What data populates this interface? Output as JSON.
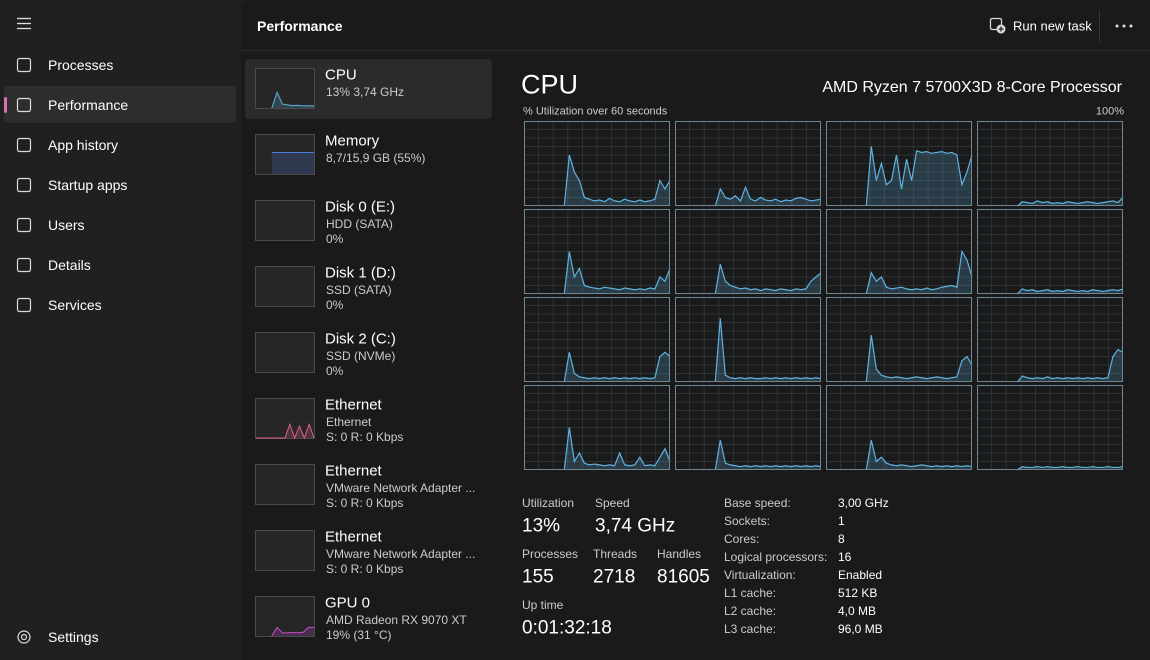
{
  "nav": {
    "items": [
      "Processes",
      "Performance",
      "App history",
      "Startup apps",
      "Users",
      "Details",
      "Services"
    ],
    "selected": 1,
    "settings": "Settings"
  },
  "header": {
    "title": "Performance",
    "run_new_task": "Run new task"
  },
  "graph_ylim": [
    0,
    100
  ],
  "devices": [
    {
      "name": "CPU",
      "lines": [
        "13%  3,74 GHz"
      ],
      "graph": {
        "color": "#5fb3e0",
        "values": [
          null,
          null,
          null,
          0,
          40,
          10,
          8,
          6,
          7,
          5,
          6,
          5
        ]
      }
    },
    {
      "name": "Memory",
      "lines": [
        "8,7/15,9 GB (55%)"
      ],
      "graph": {
        "color": "#4f7de0",
        "values": [
          null,
          null,
          null,
          55,
          55,
          55,
          55,
          55,
          55,
          55,
          55,
          55
        ]
      }
    },
    {
      "name": "Disk 0 (E:)",
      "lines": [
        "HDD (SATA)",
        "0%"
      ]
    },
    {
      "name": "Disk 1 (D:)",
      "lines": [
        "SSD (SATA)",
        "0%"
      ]
    },
    {
      "name": "Disk 2 (C:)",
      "lines": [
        "SSD (NVMe)",
        "0%"
      ]
    },
    {
      "name": "Ethernet",
      "lines": [
        "Ethernet",
        "S: 0 R: 0 Kbps"
      ],
      "graph": {
        "color": "#e0608f",
        "values": [
          0,
          0,
          0,
          0,
          0,
          0,
          0,
          35,
          0,
          30,
          0,
          35,
          0
        ]
      }
    },
    {
      "name": "Ethernet",
      "lines": [
        "VMware Network Adapter ...",
        "S: 0 R: 0 Kbps"
      ]
    },
    {
      "name": "Ethernet",
      "lines": [
        "VMware Network Adapter ...",
        "S: 0 R: 0 Kbps"
      ]
    },
    {
      "name": "GPU 0",
      "lines": [
        "AMD Radeon RX 9070 XT",
        "19% (31 °C)"
      ],
      "graph": {
        "color": "#c94fd0",
        "values": [
          null,
          null,
          null,
          0,
          22,
          8,
          8,
          9,
          8,
          10,
          22,
          22
        ]
      }
    }
  ],
  "cpu": {
    "title": "CPU",
    "model": "AMD Ryzen 7 5700X3D 8-Core Processor",
    "graph_label": "% Utilization over 60 seconds",
    "graph_max": "100%",
    "color": "#5fb3e0",
    "cores": [
      [
        null,
        null,
        null,
        null,
        null,
        null,
        null,
        null,
        0,
        60,
        40,
        30,
        10,
        8,
        6,
        7,
        5,
        9,
        6,
        5,
        8,
        6,
        5,
        7,
        5,
        6,
        8,
        30,
        20,
        30
      ],
      [
        null,
        null,
        null,
        null,
        null,
        null,
        null,
        null,
        0,
        20,
        10,
        8,
        12,
        6,
        22,
        8,
        6,
        10,
        7,
        6,
        8,
        5,
        7,
        6,
        9,
        10,
        8,
        6,
        7,
        8
      ],
      [
        null,
        null,
        null,
        null,
        null,
        null,
        null,
        null,
        0,
        70,
        30,
        50,
        25,
        30,
        60,
        20,
        55,
        30,
        65,
        63,
        64,
        62,
        63,
        64,
        62,
        63,
        60,
        25,
        40,
        60
      ],
      [
        null,
        null,
        null,
        null,
        null,
        null,
        null,
        null,
        0,
        5,
        4,
        3,
        6,
        4,
        5,
        3,
        4,
        3,
        5,
        4,
        3,
        4,
        5,
        4,
        3,
        4,
        5,
        6,
        4,
        10
      ],
      [
        null,
        null,
        null,
        null,
        null,
        null,
        null,
        null,
        0,
        50,
        20,
        30,
        10,
        8,
        7,
        6,
        8,
        7,
        6,
        5,
        7,
        6,
        5,
        6,
        5,
        7,
        6,
        20,
        15,
        30
      ],
      [
        null,
        null,
        null,
        null,
        null,
        null,
        null,
        null,
        0,
        35,
        15,
        10,
        8,
        6,
        7,
        5,
        6,
        4,
        6,
        5,
        4,
        6,
        5,
        4,
        6,
        5,
        6,
        15,
        20,
        25
      ],
      [
        null,
        null,
        null,
        null,
        null,
        null,
        null,
        null,
        0,
        25,
        15,
        20,
        8,
        6,
        7,
        8,
        6,
        5,
        6,
        5,
        7,
        5,
        6,
        8,
        9,
        10,
        8,
        50,
        40,
        20
      ],
      [
        null,
        null,
        null,
        null,
        null,
        null,
        null,
        null,
        0,
        6,
        4,
        5,
        3,
        4,
        5,
        3,
        4,
        3,
        5,
        4,
        3,
        4,
        3,
        5,
        4,
        3,
        4,
        5,
        4,
        6
      ],
      [
        null,
        null,
        null,
        null,
        null,
        null,
        null,
        null,
        0,
        35,
        10,
        6,
        5,
        4,
        5,
        4,
        5,
        4,
        5,
        4,
        5,
        4,
        5,
        4,
        5,
        4,
        5,
        30,
        35,
        30
      ],
      [
        null,
        null,
        null,
        null,
        null,
        null,
        null,
        null,
        0,
        75,
        8,
        5,
        4,
        5,
        4,
        5,
        4,
        4,
        5,
        4,
        5,
        4,
        5,
        4,
        5,
        4,
        5,
        4,
        5,
        4
      ],
      [
        null,
        null,
        null,
        null,
        null,
        null,
        null,
        null,
        0,
        55,
        15,
        8,
        6,
        5,
        6,
        5,
        4,
        5,
        6,
        5,
        4,
        5,
        6,
        5,
        4,
        5,
        6,
        25,
        30,
        20
      ],
      [
        null,
        null,
        null,
        null,
        null,
        null,
        null,
        null,
        0,
        7,
        5,
        4,
        5,
        4,
        6,
        4,
        5,
        4,
        5,
        4,
        5,
        4,
        5,
        4,
        5,
        4,
        5,
        30,
        38,
        35
      ],
      [
        null,
        null,
        null,
        null,
        null,
        null,
        null,
        null,
        0,
        50,
        10,
        20,
        8,
        6,
        7,
        6,
        5,
        6,
        5,
        20,
        6,
        5,
        6,
        15,
        5,
        6,
        5,
        15,
        25,
        10
      ],
      [
        null,
        null,
        null,
        null,
        null,
        null,
        null,
        null,
        0,
        35,
        8,
        6,
        5,
        4,
        5,
        4,
        5,
        4,
        5,
        4,
        5,
        4,
        5,
        4,
        5,
        4,
        5,
        4,
        5,
        4
      ],
      [
        null,
        null,
        null,
        null,
        null,
        null,
        null,
        null,
        0,
        35,
        10,
        15,
        8,
        6,
        5,
        6,
        5,
        4,
        5,
        6,
        5,
        4,
        5,
        4,
        5,
        4,
        5,
        4,
        5,
        4
      ],
      [
        null,
        null,
        null,
        null,
        null,
        null,
        null,
        null,
        0,
        4,
        3,
        3,
        4,
        3,
        4,
        3,
        3,
        4,
        3,
        3,
        4,
        3,
        3,
        4,
        3,
        3,
        4,
        3,
        3,
        4
      ]
    ]
  },
  "stats": [
    {
      "label": "Utilization",
      "value": "13%"
    },
    {
      "label": "Speed",
      "value": "3,74 GHz"
    },
    {
      "label": "Processes",
      "value": "155"
    },
    {
      "label": "Threads",
      "value": "2718"
    },
    {
      "label": "Handles",
      "value": "81605"
    },
    {
      "label": "Up time",
      "value": "0:01:32:18"
    }
  ],
  "specs": [
    {
      "label": "Base speed:",
      "value": "3,00 GHz"
    },
    {
      "label": "Sockets:",
      "value": "1"
    },
    {
      "label": "Cores:",
      "value": "8"
    },
    {
      "label": "Logical processors:",
      "value": "16"
    },
    {
      "label": "Virtualization:",
      "value": "Enabled"
    },
    {
      "label": "L1 cache:",
      "value": "512 KB"
    },
    {
      "label": "L2 cache:",
      "value": "4,0 MB"
    },
    {
      "label": "L3 cache:",
      "value": "96,0 MB"
    }
  ]
}
